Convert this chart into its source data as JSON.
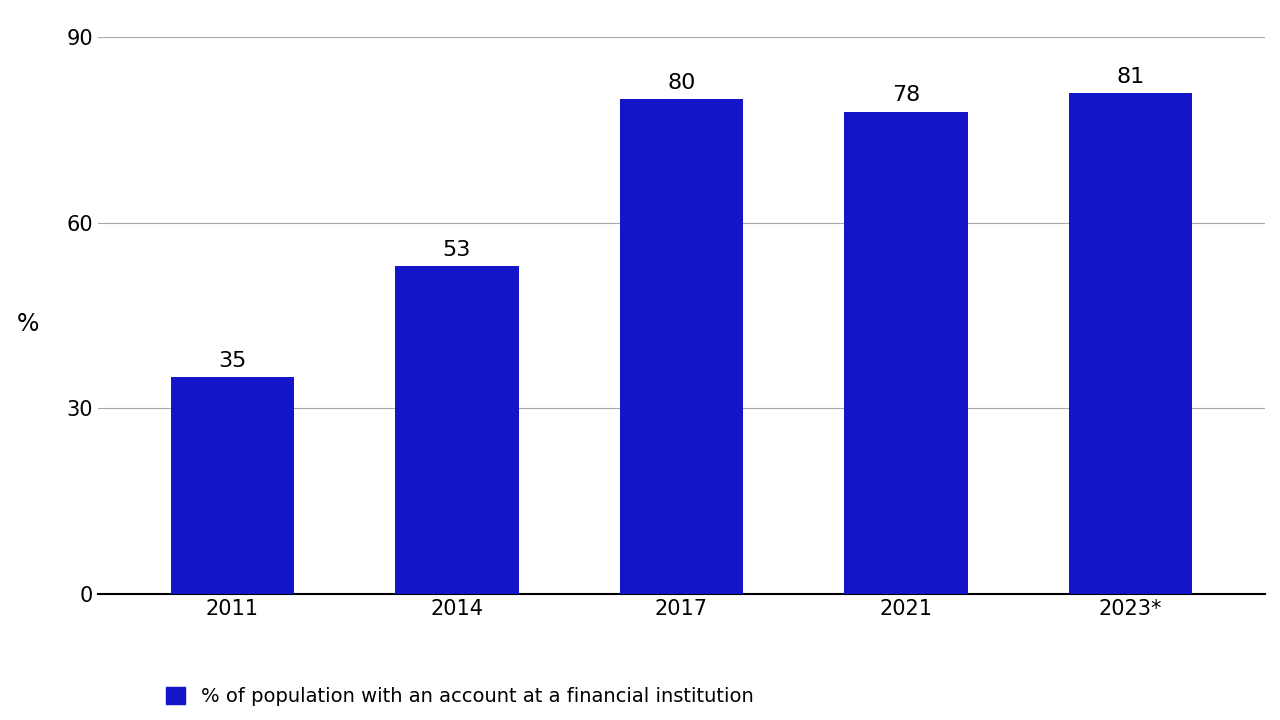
{
  "categories": [
    "2011",
    "2014",
    "2017",
    "2021",
    "2023*"
  ],
  "values": [
    35,
    53,
    80,
    78,
    81
  ],
  "bar_color": "#1414c8",
  "ylabel": "%",
  "ylim": [
    0,
    90
  ],
  "yticks": [
    0,
    30,
    60,
    90
  ],
  "bar_width": 0.55,
  "tick_fontsize": 15,
  "ylabel_fontsize": 17,
  "legend_label": "% of population with an account at a financial institution",
  "legend_fontsize": 14,
  "background_color": "#ffffff",
  "grid_color": "#aaaaaa",
  "value_label_fontsize": 16
}
